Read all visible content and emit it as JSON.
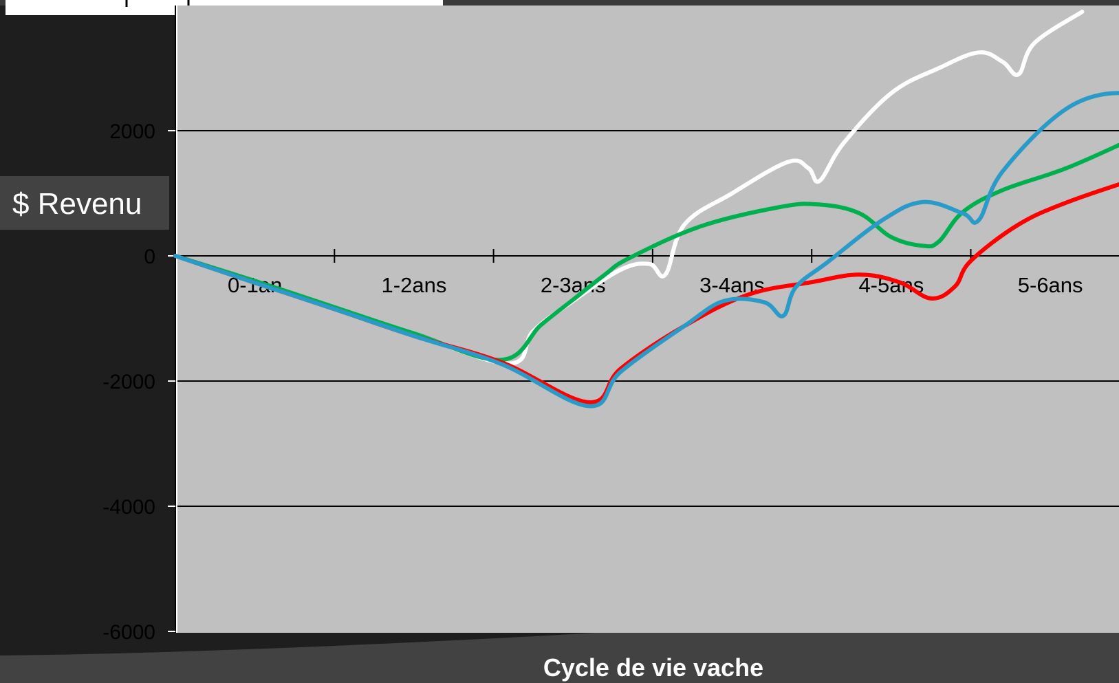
{
  "chart_data": {
    "type": "line",
    "title": "",
    "xlabel": "Cycle de vie vache",
    "ylabel": "$ Revenu",
    "categories": [
      "0-1an",
      "1-2ans",
      "2-3ans",
      "3-4ans",
      "4-5ans",
      "5-6ans"
    ],
    "y_ticks": [
      2000,
      0,
      -2000,
      -4000,
      -6000
    ],
    "ylim": [
      -6000,
      4000
    ],
    "xlim": [
      0,
      6
    ],
    "grid": true,
    "legend": "none",
    "series": [
      {
        "color": "#ffffff",
        "points": [
          [
            0,
            0
          ],
          [
            0.5,
            -420
          ],
          [
            1,
            -830
          ],
          [
            1.5,
            -1250
          ],
          [
            2.1,
            -1720
          ],
          [
            2.25,
            -1200
          ],
          [
            2.5,
            -720
          ],
          [
            2.8,
            -220
          ],
          [
            2.98,
            -130
          ],
          [
            3.08,
            -300
          ],
          [
            3.2,
            500
          ],
          [
            3.5,
            1000
          ],
          [
            3.85,
            1500
          ],
          [
            3.98,
            1400
          ],
          [
            4.05,
            1200
          ],
          [
            4.2,
            1800
          ],
          [
            4.5,
            2600
          ],
          [
            4.8,
            3000
          ],
          [
            5.05,
            3250
          ],
          [
            5.2,
            3100
          ],
          [
            5.3,
            2900
          ],
          [
            5.4,
            3400
          ],
          [
            5.7,
            3900
          ]
        ]
      },
      {
        "color": "#00b050",
        "points": [
          [
            0,
            0
          ],
          [
            0.5,
            -400
          ],
          [
            1,
            -820
          ],
          [
            1.5,
            -1240
          ],
          [
            2.05,
            -1660
          ],
          [
            2.3,
            -1100
          ],
          [
            2.5,
            -700
          ],
          [
            2.7,
            -300
          ],
          [
            2.85,
            -40
          ],
          [
            3.3,
            470
          ],
          [
            3.8,
            780
          ],
          [
            4.05,
            820
          ],
          [
            4.3,
            680
          ],
          [
            4.5,
            300
          ],
          [
            4.7,
            160
          ],
          [
            4.8,
            230
          ],
          [
            4.95,
            700
          ],
          [
            5.2,
            1050
          ],
          [
            5.6,
            1400
          ],
          [
            6.0,
            1850
          ]
        ]
      },
      {
        "color": "#ff0000",
        "points": [
          [
            0,
            0
          ],
          [
            0.5,
            -430
          ],
          [
            1,
            -850
          ],
          [
            1.5,
            -1280
          ],
          [
            2.05,
            -1700
          ],
          [
            2.6,
            -2340
          ],
          [
            2.8,
            -1800
          ],
          [
            3.2,
            -1120
          ],
          [
            3.6,
            -620
          ],
          [
            4.0,
            -420
          ],
          [
            4.3,
            -300
          ],
          [
            4.55,
            -420
          ],
          [
            4.75,
            -680
          ],
          [
            4.9,
            -490
          ],
          [
            5.0,
            -80
          ],
          [
            5.3,
            500
          ],
          [
            5.6,
            850
          ],
          [
            6.0,
            1200
          ]
        ]
      },
      {
        "color": "#2a9bc8",
        "points": [
          [
            0,
            0
          ],
          [
            0.5,
            -430
          ],
          [
            1,
            -850
          ],
          [
            1.5,
            -1280
          ],
          [
            2.05,
            -1730
          ],
          [
            2.6,
            -2400
          ],
          [
            2.8,
            -1850
          ],
          [
            3.2,
            -1120
          ],
          [
            3.45,
            -720
          ],
          [
            3.7,
            -740
          ],
          [
            3.82,
            -960
          ],
          [
            3.9,
            -500
          ],
          [
            4.1,
            -100
          ],
          [
            4.45,
            580
          ],
          [
            4.7,
            860
          ],
          [
            4.95,
            680
          ],
          [
            5.05,
            570
          ],
          [
            5.2,
            1350
          ],
          [
            5.6,
            2350
          ],
          [
            5.95,
            2600
          ],
          [
            6.05,
            2300
          ]
        ]
      }
    ]
  }
}
